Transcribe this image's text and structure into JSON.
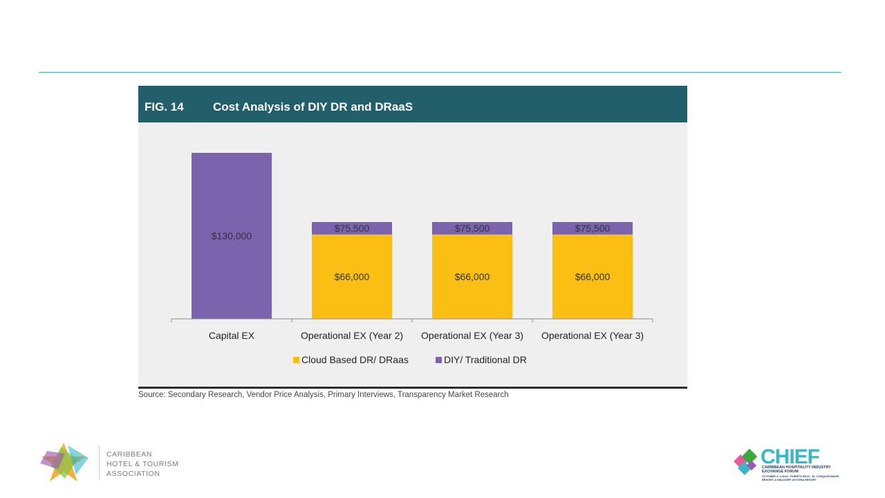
{
  "figure": {
    "number": "FIG. 14",
    "title": "Cost Analysis of DIY DR and DRaaS",
    "source": "Source: Secondary Research, Vendor Price Analysis, Primary Interviews, Transparency Market Research"
  },
  "chart_data": {
    "type": "bar",
    "stacked": true,
    "categories": [
      "Capital EX",
      "Operational EX (Year 2)",
      "Operational EX (Year 3)",
      "Operational EX (Year 3)"
    ],
    "series": [
      {
        "name": "Cloud Based DR/ DRaas",
        "color": "#fbbf14",
        "values": [
          0,
          66000,
          66000,
          66000
        ],
        "labels": [
          "",
          "$66,000",
          "$66,000",
          "$66,000"
        ]
      },
      {
        "name": "DIY/ Traditional DR",
        "color": "#7b64ad",
        "values": [
          130000,
          75500,
          75500,
          75500
        ],
        "labels": [
          "$130,000",
          "$75,500",
          "$75,500",
          "$75,500"
        ]
      }
    ],
    "title": "Cost Analysis of DIY DR and DRaaS",
    "xlabel": "",
    "ylabel": "",
    "grid": false,
    "legend": "bottom"
  },
  "branding": {
    "left_logo_lines": [
      "CARIBBEAN",
      "HOTEL & TOURISM",
      "ASSOCIATION"
    ],
    "right_logo_title": "CHIEF",
    "right_logo_sub": "CARIBBEAN HOSPITALITY INDUSTRY EXCHANGE FORUM",
    "right_logo_date": "OCTOBER 2–4 2019 · PUERTO RICO · EL CONQUISTADOR RESORT, A WALDORF ASTORIA RESORT"
  }
}
